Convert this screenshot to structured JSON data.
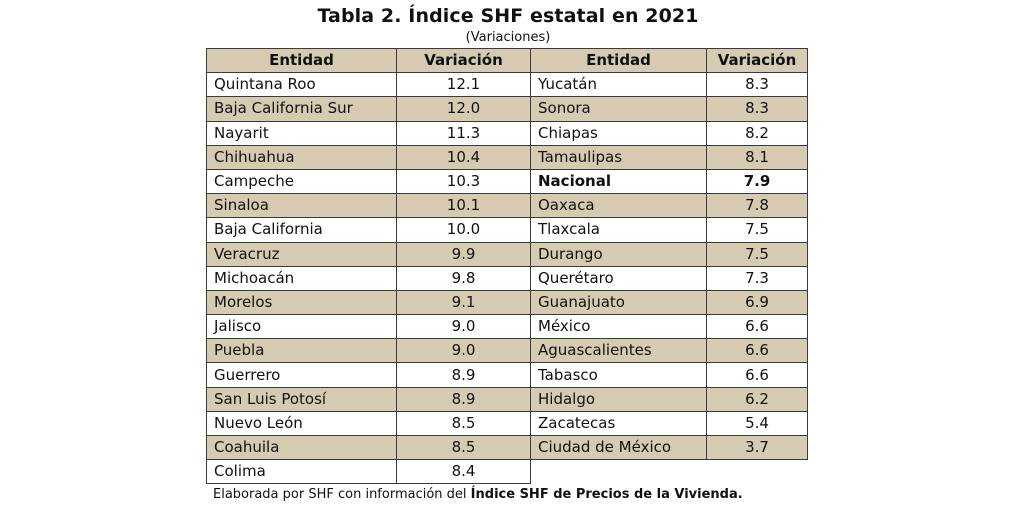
{
  "title": "Tabla 2. Índice SHF estatal en 2021",
  "subtitle": "(Variaciones)",
  "headers": {
    "entidad_1": "Entidad",
    "variacion_1": "Variación",
    "entidad_2": "Entidad",
    "variacion_2": "Variación"
  },
  "rows": [
    {
      "e1": "Quintana Roo",
      "v1": "12.1",
      "e2": "Yucatán",
      "v2": "8.3"
    },
    {
      "e1": "Baja California Sur",
      "v1": "12.0",
      "e2": "Sonora",
      "v2": "8.3"
    },
    {
      "e1": "Nayarit",
      "v1": "11.3",
      "e2": "Chiapas",
      "v2": "8.2"
    },
    {
      "e1": "Chihuahua",
      "v1": "10.4",
      "e2": "Tamaulipas",
      "v2": "8.1"
    },
    {
      "e1": "Campeche",
      "v1": "10.3",
      "e2": "Nacional",
      "v2": "7.9"
    },
    {
      "e1": "Sinaloa",
      "v1": "10.1",
      "e2": "Oaxaca",
      "v2": "7.8"
    },
    {
      "e1": "Baja California",
      "v1": "10.0",
      "e2": "Tlaxcala",
      "v2": "7.5"
    },
    {
      "e1": "Veracruz",
      "v1": "9.9",
      "e2": "Durango",
      "v2": "7.5"
    },
    {
      "e1": "Michoacán",
      "v1": "9.8",
      "e2": "Querétaro",
      "v2": "7.3"
    },
    {
      "e1": "Morelos",
      "v1": "9.1",
      "e2": "Guanajuato",
      "v2": "6.9"
    },
    {
      "e1": "Jalisco",
      "v1": "9.0",
      "e2": "México",
      "v2": "6.6"
    },
    {
      "e1": "Puebla",
      "v1": "9.0",
      "e2": "Aguascalientes",
      "v2": "6.6"
    },
    {
      "e1": "Guerrero",
      "v1": "8.9",
      "e2": "Tabasco",
      "v2": "6.6"
    },
    {
      "e1": "San Luis Potosí",
      "v1": "8.9",
      "e2": "Hidalgo",
      "v2": "6.2"
    },
    {
      "e1": "Nuevo León",
      "v1": "8.5",
      "e2": "Zacatecas",
      "v2": "5.4"
    },
    {
      "e1": "Coahuila",
      "v1": "8.5",
      "e2": "Ciudad de México",
      "v2": "3.7"
    },
    {
      "e1": "Colima",
      "v1": "8.4",
      "e2": "",
      "v2": ""
    }
  ],
  "footnote": {
    "prefix": "Elaborada por SHF con información del ",
    "source": "Índice SHF de Precios de la Vivienda",
    "suffix": "."
  },
  "colors": {
    "shade": "#d6cbb2",
    "border": "#3a3a3a"
  }
}
